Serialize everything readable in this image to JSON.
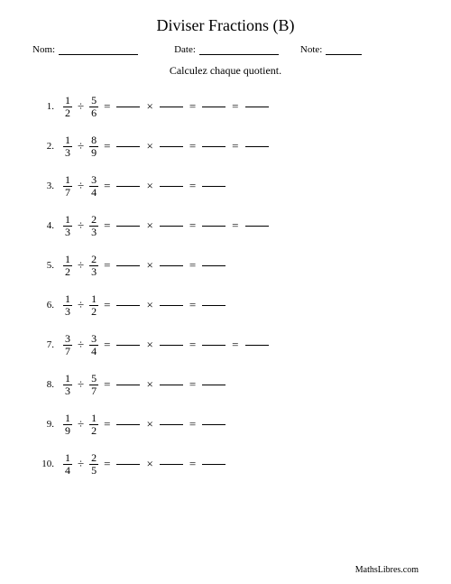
{
  "title": "Diviser Fractions (B)",
  "header": {
    "name_label": "Nom:",
    "date_label": "Date:",
    "note_label": "Note:",
    "name_line_width": 88,
    "date_line_width": 88,
    "note_line_width": 40,
    "gap1": 40,
    "gap2": 24
  },
  "subtitle": "Calculez chaque quotient.",
  "symbols": {
    "divide": "÷",
    "equals": "=",
    "times": "×"
  },
  "style": {
    "background": "#ffffff",
    "text_color": "#000000",
    "title_fontsize": 18,
    "body_fontsize": 13,
    "small_fontsize": 11,
    "blank_width": 26
  },
  "problems": [
    {
      "index": "1.",
      "a": {
        "n": "1",
        "d": "2"
      },
      "b": {
        "n": "5",
        "d": "6"
      },
      "steps": 4
    },
    {
      "index": "2.",
      "a": {
        "n": "1",
        "d": "3"
      },
      "b": {
        "n": "8",
        "d": "9"
      },
      "steps": 4
    },
    {
      "index": "3.",
      "a": {
        "n": "1",
        "d": "7"
      },
      "b": {
        "n": "3",
        "d": "4"
      },
      "steps": 3
    },
    {
      "index": "4.",
      "a": {
        "n": "1",
        "d": "3"
      },
      "b": {
        "n": "2",
        "d": "3"
      },
      "steps": 4
    },
    {
      "index": "5.",
      "a": {
        "n": "1",
        "d": "2"
      },
      "b": {
        "n": "2",
        "d": "3"
      },
      "steps": 3
    },
    {
      "index": "6.",
      "a": {
        "n": "1",
        "d": "3"
      },
      "b": {
        "n": "1",
        "d": "2"
      },
      "steps": 3
    },
    {
      "index": "7.",
      "a": {
        "n": "3",
        "d": "7"
      },
      "b": {
        "n": "3",
        "d": "4"
      },
      "steps": 4
    },
    {
      "index": "8.",
      "a": {
        "n": "1",
        "d": "3"
      },
      "b": {
        "n": "5",
        "d": "7"
      },
      "steps": 3
    },
    {
      "index": "9.",
      "a": {
        "n": "1",
        "d": "9"
      },
      "b": {
        "n": "1",
        "d": "2"
      },
      "steps": 3
    },
    {
      "index": "10.",
      "a": {
        "n": "1",
        "d": "4"
      },
      "b": {
        "n": "2",
        "d": "5"
      },
      "steps": 3
    }
  ],
  "footer": "MathsLibres.com"
}
